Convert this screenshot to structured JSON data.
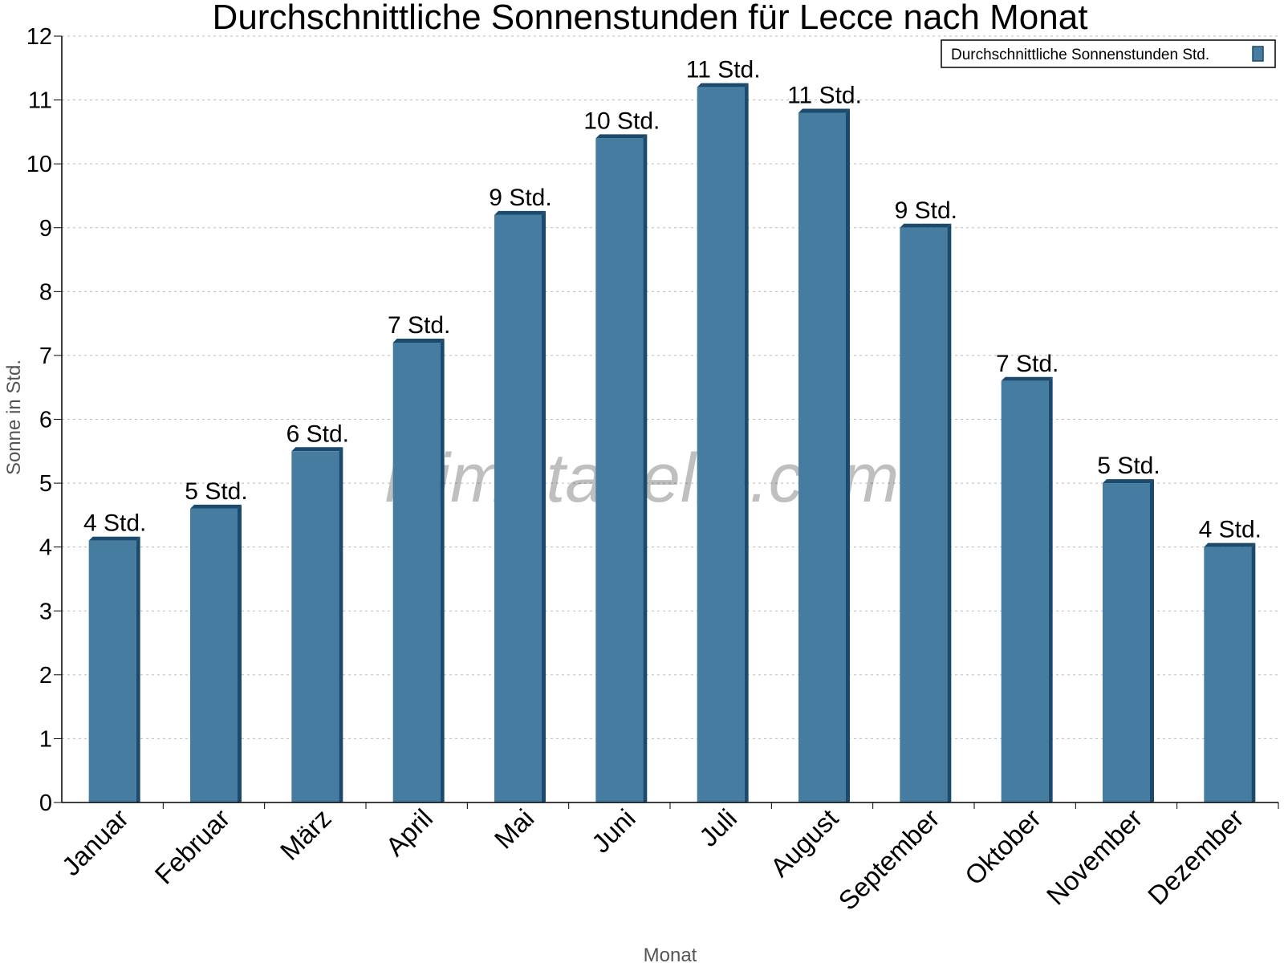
{
  "chart_data": {
    "type": "bar",
    "title": "Durchschnittliche Sonnenstunden für Lecce nach Monat",
    "xlabel": "Monat",
    "ylabel": "Sonne in Std.",
    "ylim": [
      0,
      12
    ],
    "yticks": [
      0,
      1,
      2,
      3,
      4,
      5,
      6,
      7,
      8,
      9,
      10,
      11,
      12
    ],
    "grid": true,
    "legend_position": "top-right",
    "categories": [
      "Januar",
      "Februar",
      "März",
      "April",
      "Mai",
      "Juni",
      "Juli",
      "August",
      "September",
      "Oktober",
      "November",
      "Dezember"
    ],
    "series": [
      {
        "name": "Durchschnittliche Sonnenstunden Std.",
        "values": [
          4.1,
          4.6,
          5.5,
          7.2,
          9.2,
          10.4,
          11.2,
          10.8,
          9.0,
          6.6,
          5.0,
          4.0
        ],
        "labels": [
          "4 Std.",
          "5 Std.",
          "6 Std.",
          "7 Std.",
          "9 Std.",
          "10 Std.",
          "11 Std.",
          "11 Std.",
          "9 Std.",
          "7 Std.",
          "5 Std.",
          "4 Std."
        ],
        "color": "#467ca0",
        "shade_color": "#1a4a6e"
      }
    ],
    "watermark": "klimatabelle.com"
  }
}
